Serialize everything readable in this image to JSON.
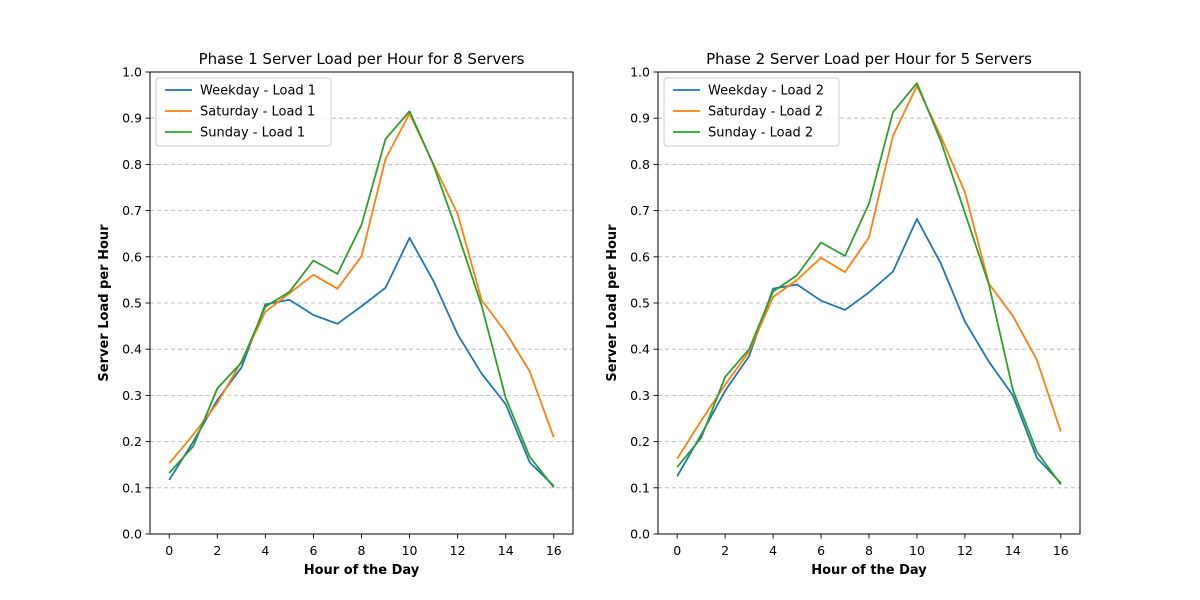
{
  "chart_data": [
    {
      "type": "line",
      "title": "Phase 1 Server Load per Hour for 8 Servers",
      "xlabel": "Hour of the Day",
      "ylabel": "Server Load per Hour",
      "xlim": [
        -0.8,
        16.8
      ],
      "ylim": [
        0.0,
        1.0
      ],
      "xticks": [
        0,
        2,
        4,
        6,
        8,
        10,
        12,
        14,
        16
      ],
      "yticks": [
        0.0,
        0.1,
        0.2,
        0.3,
        0.4,
        0.5,
        0.6,
        0.7,
        0.8,
        0.9,
        1.0
      ],
      "ytick_labels": [
        "0.0",
        "0.1",
        "0.2",
        "0.3",
        "0.4",
        "0.5",
        "0.6",
        "0.7",
        "0.8",
        "0.9",
        "1.0"
      ],
      "grid": "y-dashed",
      "legend": "top-left",
      "x": [
        0,
        1,
        2,
        3,
        4,
        5,
        6,
        7,
        8,
        9,
        10,
        11,
        12,
        13,
        14,
        15,
        16
      ],
      "series": [
        {
          "name": "Weekday - Load 1",
          "color": "#1f77b4",
          "values": [
            0.117,
            0.2,
            0.29,
            0.36,
            0.497,
            0.507,
            0.474,
            0.455,
            0.493,
            0.533,
            0.641,
            0.547,
            0.432,
            0.347,
            0.281,
            0.155,
            0.104
          ]
        },
        {
          "name": "Saturday - Load 1",
          "color": "#ff7f0e",
          "values": [
            0.153,
            0.215,
            0.283,
            0.373,
            0.481,
            0.521,
            0.561,
            0.531,
            0.601,
            0.812,
            0.91,
            0.8,
            0.693,
            0.506,
            0.437,
            0.352,
            0.209
          ]
        },
        {
          "name": "Sunday - Load 1",
          "color": "#2ca02c",
          "values": [
            0.132,
            0.19,
            0.315,
            0.371,
            0.492,
            0.524,
            0.592,
            0.563,
            0.669,
            0.855,
            0.915,
            0.798,
            0.651,
            0.494,
            0.295,
            0.167,
            0.101
          ]
        }
      ]
    },
    {
      "type": "line",
      "title": "Phase 2 Server Load per Hour for 5 Servers",
      "xlabel": "Hour of the Day",
      "ylabel": "Server Load per Hour",
      "xlim": [
        -0.8,
        16.8
      ],
      "ylim": [
        0.0,
        1.0
      ],
      "xticks": [
        0,
        2,
        4,
        6,
        8,
        10,
        12,
        14,
        16
      ],
      "yticks": [
        0.0,
        0.1,
        0.2,
        0.3,
        0.4,
        0.5,
        0.6,
        0.7,
        0.8,
        0.9,
        1.0
      ],
      "ytick_labels": [
        "0.0",
        "0.1",
        "0.2",
        "0.3",
        "0.4",
        "0.5",
        "0.6",
        "0.7",
        "0.8",
        "0.9",
        "1.0"
      ],
      "grid": "y-dashed",
      "legend": "top-left",
      "x": [
        0,
        1,
        2,
        3,
        4,
        5,
        6,
        7,
        8,
        9,
        10,
        11,
        12,
        13,
        14,
        15,
        16
      ],
      "series": [
        {
          "name": "Weekday - Load 2",
          "color": "#1f77b4",
          "values": [
            0.125,
            0.215,
            0.31,
            0.385,
            0.531,
            0.54,
            0.505,
            0.485,
            0.523,
            0.568,
            0.682,
            0.585,
            0.46,
            0.373,
            0.3,
            0.165,
            0.11
          ]
        },
        {
          "name": "Saturday - Load 2",
          "color": "#ff7f0e",
          "values": [
            0.163,
            0.245,
            0.323,
            0.395,
            0.513,
            0.55,
            0.598,
            0.567,
            0.642,
            0.862,
            0.97,
            0.86,
            0.74,
            0.542,
            0.472,
            0.377,
            0.222
          ]
        },
        {
          "name": "Sunday - Load 2",
          "color": "#2ca02c",
          "values": [
            0.145,
            0.208,
            0.34,
            0.4,
            0.525,
            0.56,
            0.631,
            0.602,
            0.715,
            0.913,
            0.976,
            0.85,
            0.695,
            0.54,
            0.312,
            0.178,
            0.107
          ]
        }
      ]
    }
  ]
}
